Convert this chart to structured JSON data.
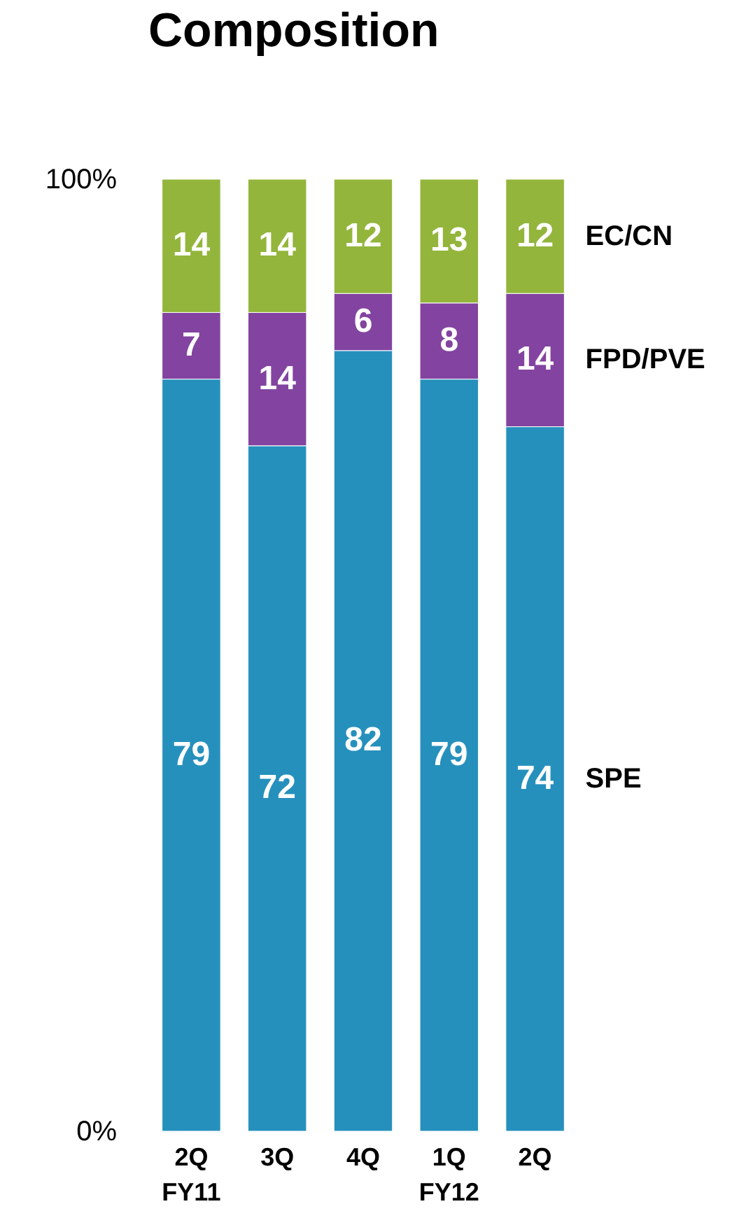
{
  "chart_data": {
    "type": "bar",
    "title": "Composition",
    "categories": [
      "2Q\nFY11",
      "3Q",
      "4Q",
      "1Q\nFY12",
      "2Q"
    ],
    "stacked": true,
    "data_labels": true,
    "series": [
      {
        "name": "SPE",
        "color": "#2690bd",
        "values": [
          79,
          72,
          82,
          79,
          74
        ]
      },
      {
        "name": "FPD/PVE",
        "color": "#8343a0",
        "values": [
          7,
          14,
          6,
          8,
          14
        ]
      },
      {
        "name": "EC/CN",
        "color": "#93b53c",
        "values": [
          14,
          14,
          12,
          13,
          12
        ]
      }
    ],
    "ylim": [
      0,
      100
    ],
    "yticks": [
      {
        "value": 0,
        "label": "0%"
      },
      {
        "value": 100,
        "label": "100%"
      }
    ]
  }
}
